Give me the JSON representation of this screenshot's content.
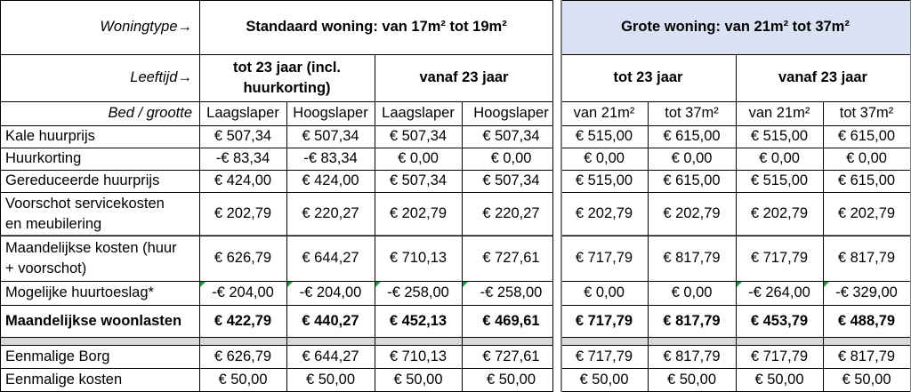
{
  "header": {
    "row1_label": "Woningtype→",
    "group_standard": "Standaard woning: van 17m² tot 19m²",
    "group_large": "Grote woning: van 21m² tot 37m²",
    "row2_label": "Leeftijd→",
    "std_age_under": "tot 23 jaar (incl. huurkorting)",
    "std_age_over": "vanaf 23 jaar",
    "large_age_under": "tot 23 jaar",
    "large_age_over": "vanaf 23 jaar",
    "row3_label": "Bed / grootte",
    "subheaders": [
      "Laagslaper",
      "Hoogslaper",
      "Laagslaper",
      "Hoogslaper",
      "van 21m²",
      "tot 37m²",
      "van 21m²",
      "tot 37m²"
    ]
  },
  "colors": {
    "large_header_bg": "#d9e1f2",
    "separator": "#d9d9d9",
    "note_marker": "#1a9a3a"
  },
  "rows": [
    {
      "label": "Kale huurprijs",
      "values": [
        "€ 507,34",
        "€ 507,34",
        "€ 507,34",
        "€ 507,34",
        "€ 515,00",
        "€ 615,00",
        "€ 515,00",
        "€ 615,00"
      ]
    },
    {
      "label": "Huurkorting",
      "values": [
        "-€ 83,34",
        "-€ 83,34",
        "€ 0,00",
        "€ 0,00",
        "€ 0,00",
        "€ 0,00",
        "€ 0,00",
        "€ 0,00"
      ]
    },
    {
      "label": "Gereduceerde huurprijs",
      "values": [
        "€ 424,00",
        "€ 424,00",
        "€ 507,34",
        "€ 507,34",
        "€ 515,00",
        "€ 615,00",
        "€ 515,00",
        "€ 615,00"
      ]
    },
    {
      "label": "Voorschot servicekosten en meubilering",
      "values": [
        "€ 202,79",
        "€ 220,27",
        "€ 202,79",
        "€ 220,27",
        "€ 202,79",
        "€ 202,79",
        "€ 202,79",
        "€ 202,79"
      ]
    },
    {
      "label": "Maandelijkse kosten (huur + voorschot)",
      "values": [
        "€ 626,79",
        "€ 644,27",
        "€ 710,13",
        "€ 727,61",
        "€ 717,79",
        "€ 817,79",
        "€ 717,79",
        "€ 817,79"
      ]
    },
    {
      "label": "Mogelijke huurtoeslag*",
      "values": [
        "-€ 204,00",
        "-€ 204,00",
        "-€ 258,00",
        "-€ 258,00",
        "€ 0,00",
        "€ 0,00",
        "-€ 264,00",
        "-€ 329,00"
      ]
    },
    {
      "label": "Maandelijkse woonlasten",
      "values": [
        "€ 422,79",
        "€ 440,27",
        "€ 452,13",
        "€ 469,61",
        "€ 717,79",
        "€ 817,79",
        "€ 453,79",
        "€ 488,79"
      ]
    },
    {
      "label": "Eenmalige Borg",
      "values": [
        "€ 626,79",
        "€ 644,27",
        "€ 710,13",
        "€ 727,61",
        "€ 717,79",
        "€ 817,79",
        "€ 717,79",
        "€ 817,79"
      ]
    },
    {
      "label": "Eenmalige kosten",
      "values": [
        "€ 50,00",
        "€ 50,00",
        "€ 50,00",
        "€ 50,00",
        "€ 50,00",
        "€ 50,00",
        "€ 50,00",
        "€ 50,00"
      ]
    }
  ]
}
